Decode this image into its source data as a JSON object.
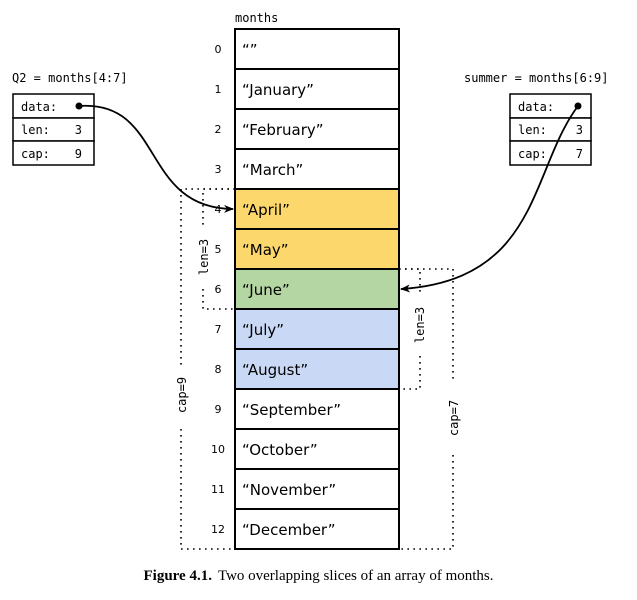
{
  "array": {
    "name": "months",
    "cells": [
      {
        "index": "0",
        "value": "“”",
        "color": "#ffffff"
      },
      {
        "index": "1",
        "value": "“January”",
        "color": "#ffffff"
      },
      {
        "index": "2",
        "value": "“February”",
        "color": "#ffffff"
      },
      {
        "index": "3",
        "value": "“March”",
        "color": "#ffffff"
      },
      {
        "index": "4",
        "value": "“April”",
        "color": "#fcd86c"
      },
      {
        "index": "5",
        "value": "“May”",
        "color": "#fcd86c"
      },
      {
        "index": "6",
        "value": "“June”",
        "color": "#b4d6a3"
      },
      {
        "index": "7",
        "value": "“July”",
        "color": "#c9d9f5"
      },
      {
        "index": "8",
        "value": "“August”",
        "color": "#c9d9f5"
      },
      {
        "index": "9",
        "value": "“September”",
        "color": "#ffffff"
      },
      {
        "index": "10",
        "value": "“October”",
        "color": "#ffffff"
      },
      {
        "index": "11",
        "value": "“November”",
        "color": "#ffffff"
      },
      {
        "index": "12",
        "value": "“December”",
        "color": "#ffffff"
      }
    ]
  },
  "slices": {
    "q2": {
      "label": "Q2 = months[4:7]",
      "data_label": "data:",
      "len_label": "len:",
      "len": "3",
      "cap_label": "cap:",
      "cap": "9",
      "len_bracket": "len=3",
      "cap_bracket": "cap=9"
    },
    "summer": {
      "label": "summer = months[6:9]",
      "data_label": "data:",
      "len_label": "len:",
      "len": "3",
      "cap_label": "cap:",
      "cap": "7",
      "len_bracket": "len=3",
      "cap_bracket": "cap=7"
    }
  },
  "caption": {
    "number": "Figure 4.1.",
    "text": "Two overlapping slices of an array of months."
  }
}
